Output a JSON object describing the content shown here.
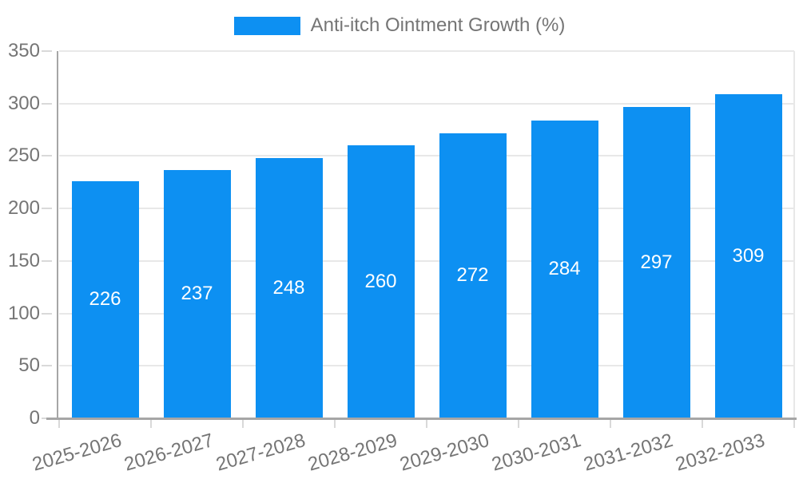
{
  "chart_data": {
    "type": "bar",
    "title": "",
    "legend": {
      "label": "Anti-itch Ointment Growth (%)",
      "position": "top"
    },
    "categories": [
      "2025-2026",
      "2026-2027",
      "2027-2028",
      "2028-2029",
      "2029-2030",
      "2030-2031",
      "2031-2032",
      "2032-2033"
    ],
    "values": [
      226,
      237,
      248,
      260,
      272,
      284,
      297,
      309
    ],
    "bar_value_labels": [
      "226",
      "237",
      "248",
      "260",
      "272",
      "284",
      "297",
      "309"
    ],
    "xlabel": "",
    "ylabel": "",
    "ylim": [
      0,
      350
    ],
    "yticks": [
      0,
      50,
      100,
      150,
      200,
      250,
      300,
      350
    ],
    "grid": true,
    "colors": {
      "bar": "#0d90f2",
      "bar_label": "#ffffff",
      "text": "#757575",
      "grid": "#e8e8e8",
      "axis": "#a6a6a6",
      "tick": "#d9d9d9",
      "background": "#ffffff"
    }
  }
}
